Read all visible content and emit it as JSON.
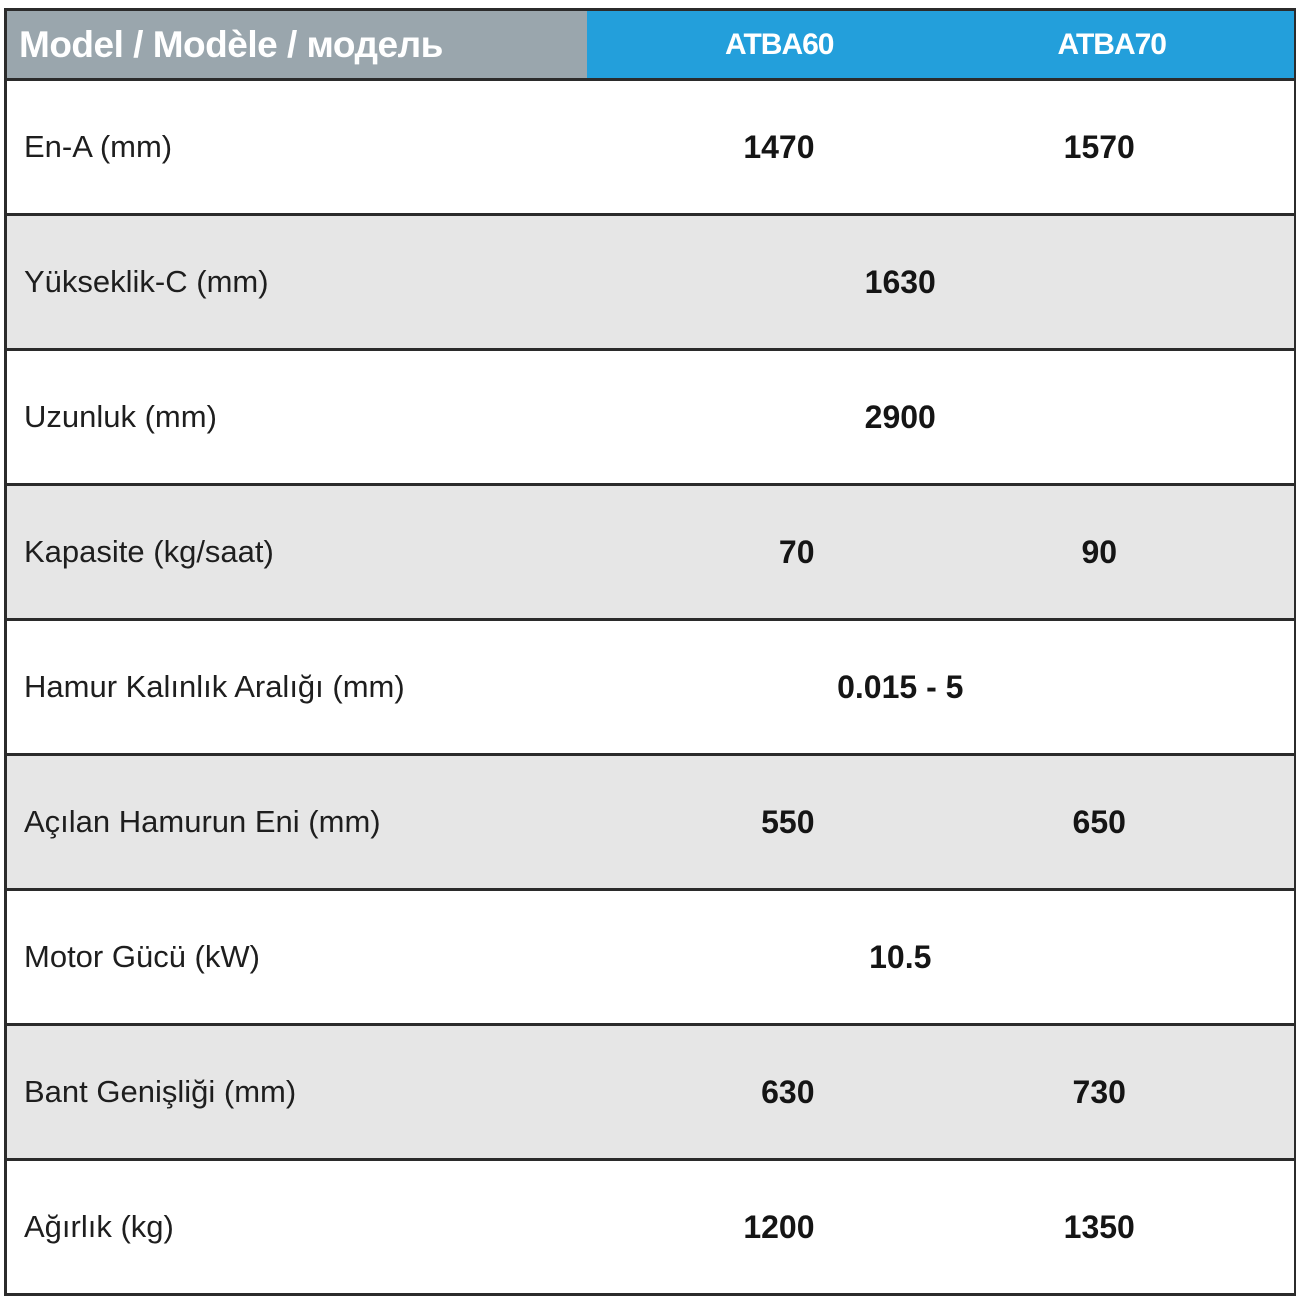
{
  "header": {
    "label": "Model / Modèle / модель",
    "models": [
      "ATBA60",
      "ATBA70"
    ]
  },
  "rows": [
    {
      "label": "En-A (mm)",
      "a": "1470",
      "b": "1570"
    },
    {
      "label": "Yükseklik-C (mm)",
      "both": "1630"
    },
    {
      "label": "Uzunluk (mm)",
      "both": "2900"
    },
    {
      "label": "Kapasite (kg/saat)",
      "a": "70",
      "b": "90"
    },
    {
      "label": "Hamur Kalınlık Aralığı (mm)",
      "both": "0.015 - 5"
    },
    {
      "label": "Açılan Hamurun Eni (mm)",
      "a": "550",
      "b": "650"
    },
    {
      "label": "Motor Gücü (kW)",
      "both": "10.5"
    },
    {
      "label": "Bant Genişliği (mm)",
      "a": "630",
      "b": "730"
    },
    {
      "label": "Ağırlık (kg)",
      "a": "1200",
      "b": "1350"
    }
  ],
  "colors": {
    "header_label_bg": "#9aa6ad",
    "header_model_bg": "#239fdb",
    "alt_row_bg": "#e6e6e6",
    "border": "#2b2b2b"
  }
}
